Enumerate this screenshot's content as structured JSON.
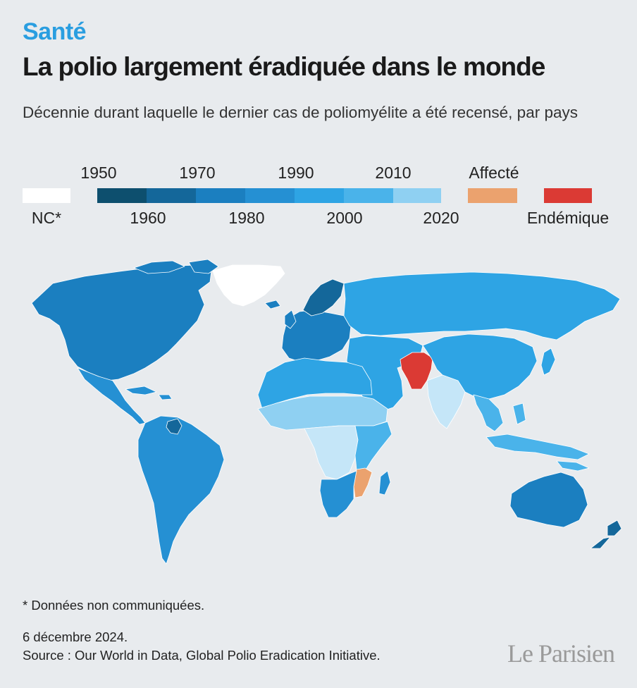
{
  "header": {
    "section": "Santé",
    "title": "La polio largement éradiquée dans le monde",
    "subtitle": "Décennie durant laquelle le dernier cas de poliomyélite a été recensé, par pays"
  },
  "legend": {
    "nc_label": "NC*",
    "decades_top": [
      "1950",
      "1970",
      "1990",
      "2010"
    ],
    "decades_bottom": [
      "1960",
      "1980",
      "2000",
      "2020"
    ],
    "affected_label": "Affecté",
    "endemic_label": "Endémique",
    "colors": {
      "nc": "#ffffff",
      "1950": "#0d4f6e",
      "1960": "#14679a",
      "1970": "#1b7fc0",
      "1980": "#2590d3",
      "1990": "#2ea4e4",
      "2000": "#4ab3ea",
      "2010": "#8fd0f2",
      "2020": "#c5e6f8",
      "affected": "#eba26e",
      "endemic": "#db3a34"
    }
  },
  "map": {
    "regions": [
      {
        "name": "Amérique du Nord",
        "decade": "1970"
      },
      {
        "name": "Groenland",
        "decade": "nc"
      },
      {
        "name": "Amérique centrale",
        "decade": "1980"
      },
      {
        "name": "Amérique du Sud",
        "decade": "1980"
      },
      {
        "name": "Guyane",
        "decade": "1960"
      },
      {
        "name": "Europe",
        "decade": "1970"
      },
      {
        "name": "Scandinavie",
        "decade": "1960"
      },
      {
        "name": "Russie",
        "decade": "1990"
      },
      {
        "name": "Afrique du Nord",
        "decade": "1990"
      },
      {
        "name": "Sahel",
        "decade": "2010"
      },
      {
        "name": "Afrique centrale",
        "decade": "2020"
      },
      {
        "name": "Afrique de l'Est",
        "decade": "2000"
      },
      {
        "name": "Mozambique",
        "decade": "affected"
      },
      {
        "name": "Afrique australe",
        "decade": "1980"
      },
      {
        "name": "Moyen-Orient",
        "decade": "1990"
      },
      {
        "name": "Afghanistan et Pakistan",
        "decade": "endemic"
      },
      {
        "name": "Inde",
        "decade": "2020"
      },
      {
        "name": "Chine",
        "decade": "1990"
      },
      {
        "name": "Asie du Sud-Est",
        "decade": "2000"
      },
      {
        "name": "Australie",
        "decade": "1970"
      },
      {
        "name": "Nouvelle-Zélande",
        "decade": "1960"
      }
    ]
  },
  "footer": {
    "footnote": "* Données non communiquées.",
    "date": "6 décembre 2024.",
    "source": "Source : Our World in Data, Global Polio Eradication Initiative.",
    "logo": "Le Parisien"
  }
}
